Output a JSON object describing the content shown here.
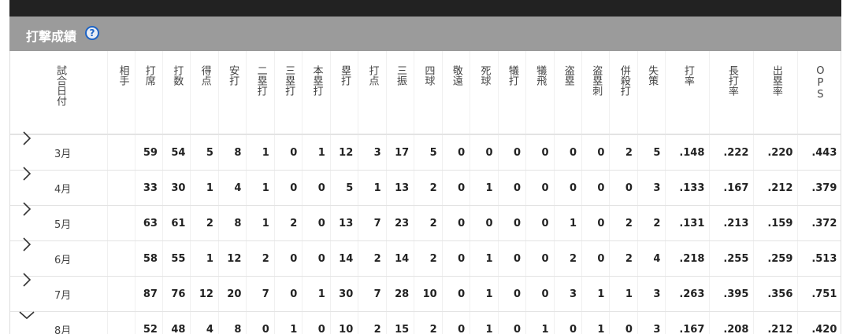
{
  "header": {
    "title": "打撃成績"
  },
  "table": {
    "columns": [
      "試合日付",
      "相手",
      "打席",
      "打数",
      "得点",
      "安打",
      "二塁打",
      "三塁打",
      "本塁打",
      "塁打",
      "打点",
      "三振",
      "四球",
      "敬遠",
      "死球",
      "犠打",
      "犠飛",
      "盗塁",
      "盗塁刺",
      "併殺打",
      "失策",
      "打率",
      "長打率",
      "出塁率",
      "OPS"
    ],
    "rows": [
      {
        "date": "3月",
        "stats": [
          59,
          54,
          5,
          8,
          1,
          0,
          1,
          12,
          3,
          17,
          5,
          0,
          0,
          0,
          0,
          0,
          0,
          2,
          5,
          ".148",
          ".222",
          ".220",
          ".443"
        ]
      },
      {
        "date": "4月",
        "stats": [
          33,
          30,
          1,
          4,
          1,
          0,
          0,
          5,
          1,
          13,
          2,
          0,
          1,
          0,
          0,
          0,
          0,
          0,
          3,
          ".133",
          ".167",
          ".212",
          ".379"
        ]
      },
      {
        "date": "5月",
        "stats": [
          63,
          61,
          2,
          8,
          1,
          2,
          0,
          13,
          7,
          23,
          2,
          0,
          0,
          0,
          0,
          1,
          0,
          2,
          2,
          ".131",
          ".213",
          ".159",
          ".372"
        ]
      },
      {
        "date": "6月",
        "stats": [
          58,
          55,
          1,
          12,
          2,
          0,
          0,
          14,
          2,
          14,
          2,
          0,
          1,
          0,
          0,
          2,
          0,
          2,
          4,
          ".218",
          ".255",
          ".259",
          ".513"
        ]
      },
      {
        "date": "7月",
        "stats": [
          87,
          76,
          12,
          20,
          7,
          0,
          1,
          30,
          7,
          28,
          10,
          0,
          1,
          0,
          0,
          3,
          1,
          1,
          3,
          ".263",
          ".395",
          ".356",
          ".751"
        ]
      },
      {
        "date": "8月",
        "stats": [
          52,
          48,
          4,
          8,
          0,
          1,
          0,
          10,
          2,
          15,
          2,
          0,
          1,
          0,
          1,
          0,
          1,
          0,
          3,
          ".167",
          ".208",
          ".212",
          ".420"
        ]
      }
    ]
  }
}
